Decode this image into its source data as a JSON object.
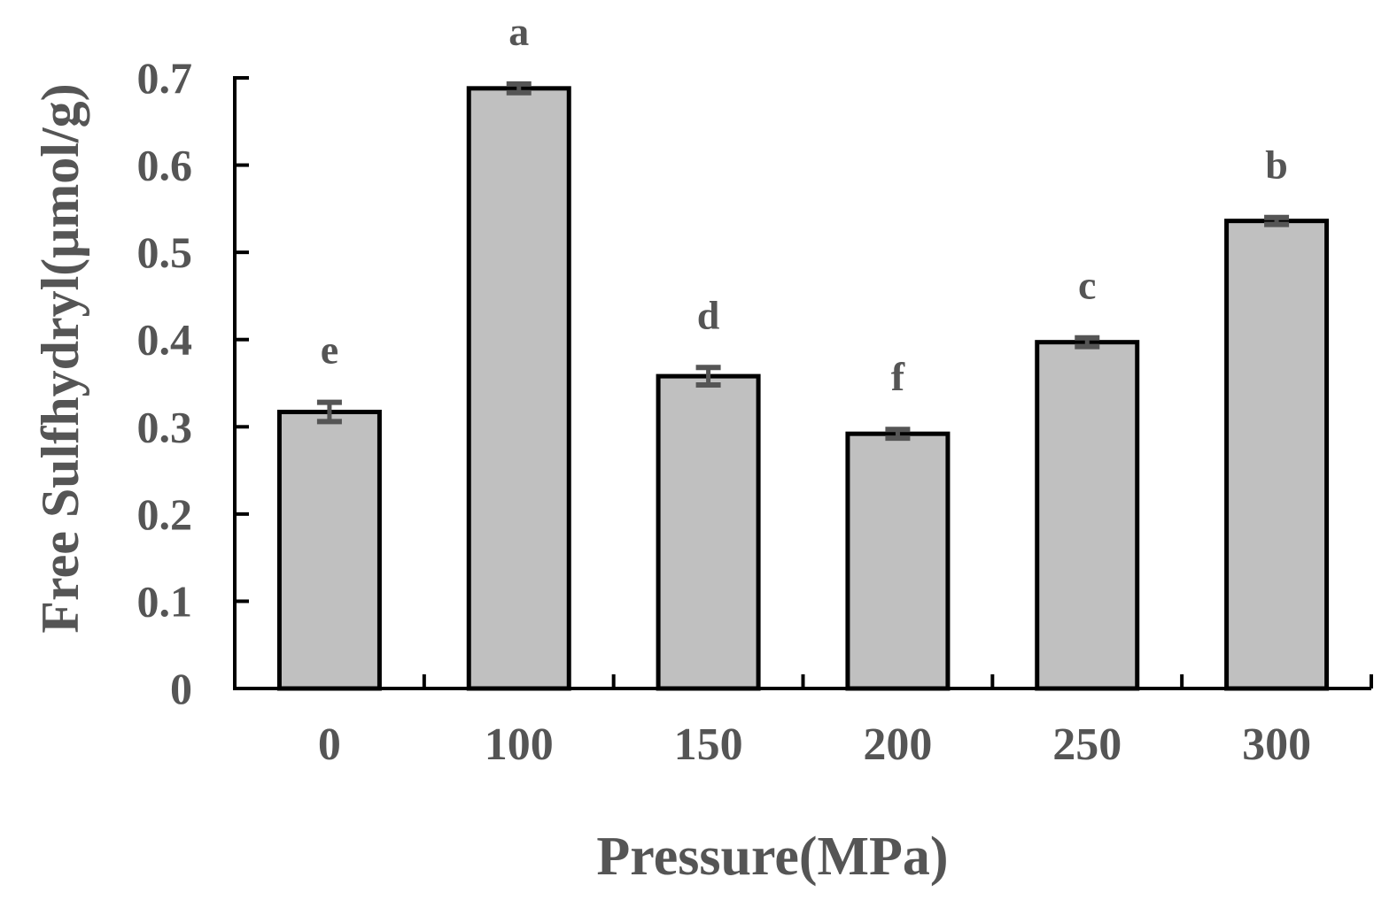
{
  "chart_data": {
    "type": "bar",
    "title": "",
    "xlabel": "Pressure(MPa)",
    "ylabel": "Free Sulfhydryl(μmol/g)",
    "categories": [
      "0",
      "100",
      "150",
      "200",
      "250",
      "300"
    ],
    "values": [
      0.317,
      0.688,
      0.358,
      0.292,
      0.397,
      0.536
    ],
    "errors": [
      0.011,
      0.005,
      0.01,
      0.005,
      0.005,
      0.004
    ],
    "significance_letters": [
      "e",
      "a",
      "d",
      "f",
      "c",
      "b"
    ],
    "ylim": [
      0,
      0.7
    ],
    "yticks": [
      "0",
      "0.1",
      "0.2",
      "0.3",
      "0.4",
      "0.5",
      "0.6",
      "0.7"
    ],
    "grid": false,
    "legend": "none",
    "colors": {
      "bar_fill": "#c0c0c0",
      "bar_stroke": "#000000",
      "error_bar": "#555555",
      "text": "#555555",
      "axis": "#000000"
    }
  }
}
